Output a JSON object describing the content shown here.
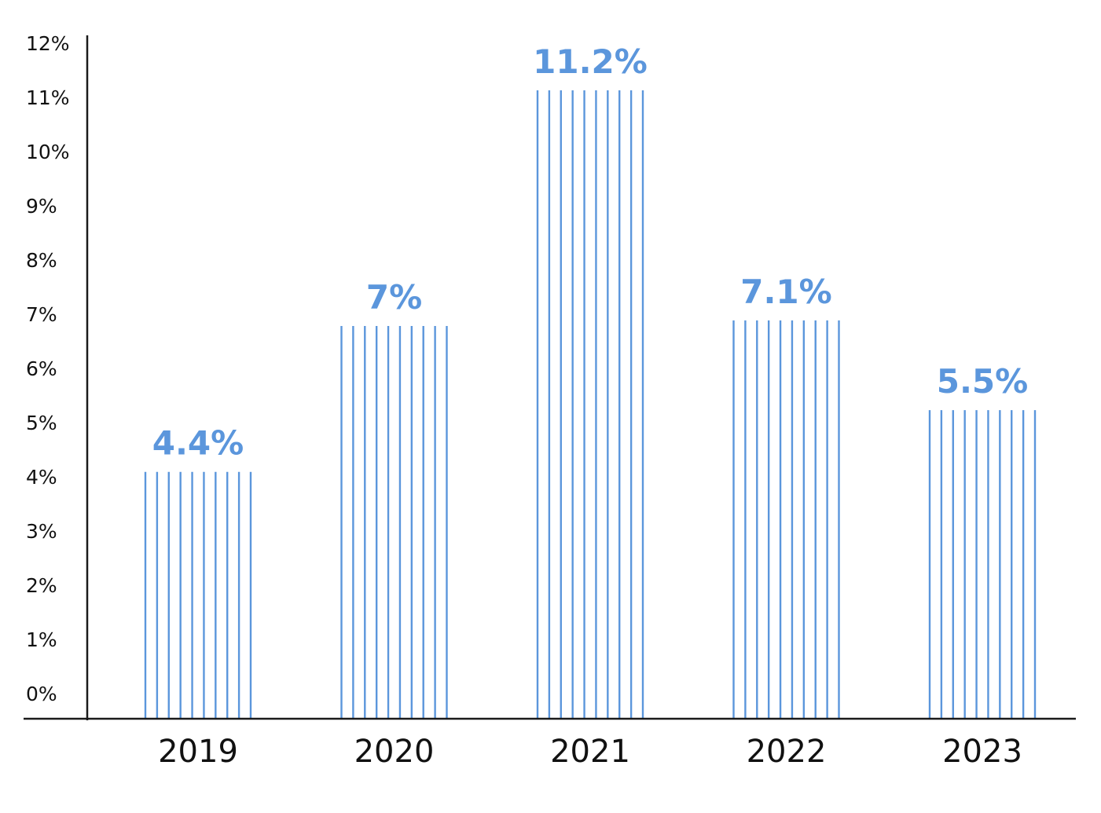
{
  "chart_data": {
    "type": "bar",
    "title": "",
    "xlabel": "",
    "ylabel": "",
    "categories": [
      "2019",
      "2020",
      "2021",
      "2022",
      "2023"
    ],
    "values": [
      4.4,
      7,
      11.2,
      7.1,
      5.5
    ],
    "value_labels": [
      "4.4%",
      "7%",
      "11.2%",
      "7.1%",
      "5.5%"
    ],
    "ylim": [
      0,
      12
    ],
    "yticks": [
      0,
      1,
      2,
      3,
      4,
      5,
      6,
      7,
      8,
      9,
      10,
      11,
      12
    ],
    "ytick_labels": [
      "0%",
      "1%",
      "2%",
      "3%",
      "4%",
      "5%",
      "6%",
      "7%",
      "8%",
      "9%",
      "10%",
      "11%",
      "12%"
    ],
    "grid": false,
    "legend": "none",
    "bar_style": "vertical-stripes",
    "colors": {
      "bar": "#5b96dc",
      "label": "#5b96dc",
      "axis": "#1a1a1a"
    }
  }
}
